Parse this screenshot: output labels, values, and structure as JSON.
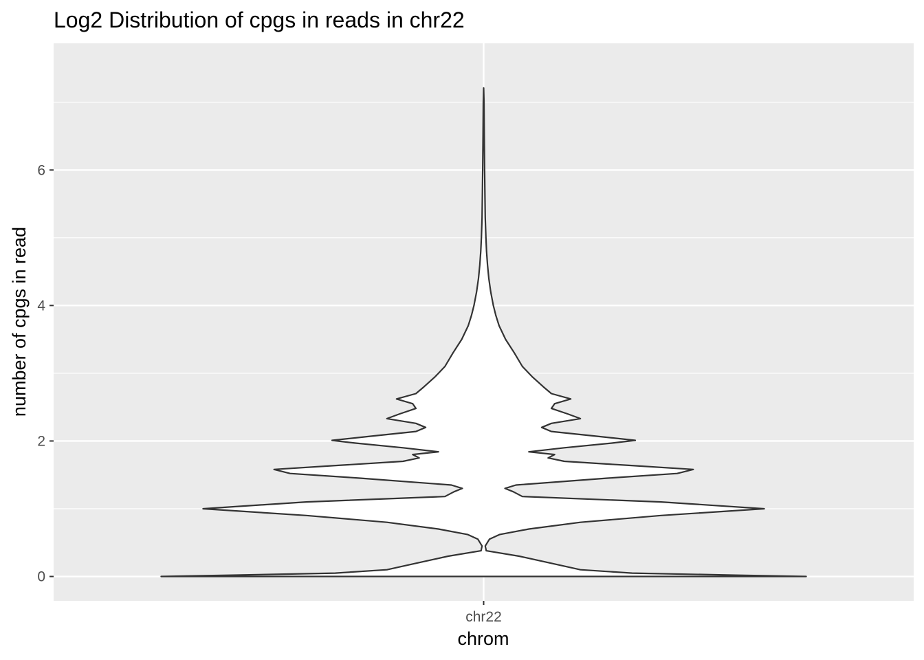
{
  "chart_data": {
    "type": "violin",
    "title": "Log2 Distribution of cpgs in reads in chr22",
    "xlabel": "chrom",
    "ylabel": "number of cpgs in read",
    "categories": [
      "chr22"
    ],
    "ylim": [
      -0.36,
      7.87
    ],
    "y_ticks": [
      0,
      2,
      4,
      6
    ],
    "y_tick_labels": [
      "0",
      "2",
      "4",
      "6"
    ],
    "grid": true,
    "panel_color": "#ebebeb",
    "grid_color": "#ffffff",
    "violin_fill": "#ffffff",
    "violin_outline": "#333333",
    "density": {
      "y": [
        0.0,
        0.02,
        0.05,
        0.1,
        0.2,
        0.3,
        0.38,
        0.45,
        0.55,
        0.62,
        0.7,
        0.8,
        0.9,
        1.0,
        1.1,
        1.18,
        1.25,
        1.3,
        1.35,
        1.45,
        1.52,
        1.58,
        1.64,
        1.7,
        1.75,
        1.8,
        1.84,
        1.9,
        1.97,
        2.01,
        2.07,
        2.14,
        2.2,
        2.26,
        2.33,
        2.4,
        2.48,
        2.55,
        2.62,
        2.7,
        2.8,
        2.95,
        3.1,
        3.3,
        3.5,
        3.7,
        3.85,
        4.0,
        4.2,
        4.4,
        4.6,
        4.8,
        5.0,
        5.3,
        5.6,
        6.0,
        6.5,
        7.0,
        7.21
      ],
      "half_width": [
        1.0,
        0.78,
        0.46,
        0.3,
        0.205,
        0.11,
        0.008,
        0.005,
        0.018,
        0.05,
        0.14,
        0.3,
        0.55,
        0.87,
        0.55,
        0.12,
        0.092,
        0.066,
        0.1,
        0.38,
        0.6,
        0.65,
        0.45,
        0.25,
        0.2,
        0.22,
        0.14,
        0.25,
        0.4,
        0.47,
        0.35,
        0.21,
        0.18,
        0.21,
        0.3,
        0.26,
        0.21,
        0.22,
        0.27,
        0.21,
        0.185,
        0.15,
        0.12,
        0.095,
        0.068,
        0.048,
        0.038,
        0.03,
        0.022,
        0.016,
        0.012,
        0.009,
        0.007,
        0.005,
        0.004,
        0.003,
        0.002,
        0.001,
        0.0
      ]
    }
  }
}
